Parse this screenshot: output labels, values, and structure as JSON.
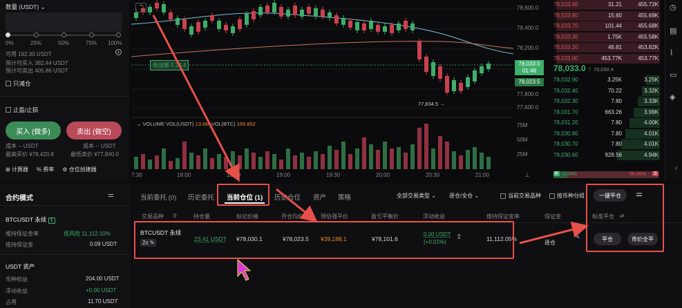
{
  "order_panel": {
    "qty_label": "数量 (USDT)",
    "pct_marks": [
      "0%",
      "25%",
      "50%",
      "75%",
      "100%"
    ],
    "available": "可用 192.30 USDT",
    "est_buy": "预计可买入 382.44 USDT",
    "est_sell": "预计可卖出 405.86 USDT",
    "reduce_only": "只减仓",
    "tp_sl": "止盈/止损",
    "buy_label": "买入 (做多)",
    "sell_label": "卖出 (做空)",
    "cost_left": "成本 -- USDT",
    "cost_right": "成本 -- USDT",
    "max_buy": "最高买价 ¥78,420.8",
    "min_sell": "最低卖价 ¥77,840.0",
    "tools": [
      "计算器",
      "费率",
      "仓位创建器"
    ]
  },
  "chart": {
    "time_ticks": [
      "7:30",
      "18:00",
      "18:30",
      "19:00",
      "19:30",
      "20:00",
      "20:30",
      "21:00"
    ],
    "price_ticks": [
      "78,600.0",
      "78,400.0",
      "78,200.0",
      "78,000.0",
      "77,800.0",
      "77,600.0"
    ],
    "volume_ticks": [
      "75M",
      "50M",
      "25M"
    ],
    "pnl_tag": "收益额 0.23.4",
    "current_price_tag": "78,033.0",
    "countdown": "01:48",
    "entry_tag": "78,023.5",
    "low_label": "77,834.5 →",
    "volume_legend_prefix": "VOLUME  VOL(USDT)",
    "volume_usdt": "13.6M",
    "volume_btc_label": "VOL(BTC)",
    "volume_btc": "169.852"
  },
  "orderbook": {
    "asks": [
      [
        "78,033.90",
        "31.21",
        "455.72K"
      ],
      [
        "78,033.80",
        "15.60",
        "455.69K"
      ],
      [
        "78,033.70",
        "101.44",
        "455.68K"
      ],
      [
        "78,033.30",
        "1.75K",
        "455.58K"
      ],
      [
        "78,033.20",
        "46.81",
        "453.82K"
      ],
      [
        "78,033.00",
        "453.77K",
        "453.77K"
      ]
    ],
    "mid_price": "78,033.0",
    "mid_ref": "78,030.4",
    "bids": [
      [
        "78,032.90",
        "3.25K",
        "3.25K"
      ],
      [
        "78,032.40",
        "70.22",
        "3.32K"
      ],
      [
        "78,032.30",
        "7.80",
        "3.33K"
      ],
      [
        "78,031.70",
        "663.26",
        "3.99K"
      ],
      [
        "78,031.20",
        "7.80",
        "4.00K"
      ],
      [
        "78,030.80",
        "7.80",
        "4.01K"
      ],
      [
        "78,030.70",
        "7.80",
        "4.01K"
      ],
      [
        "78,030.60",
        "928.56",
        "4.94K"
      ]
    ],
    "buy_ratio": "1.04%",
    "sell_ratio": "98.96%",
    "buy_letter": "B",
    "sell_letter": "S"
  },
  "bottom_left": {
    "title": "合约模式",
    "pair": "BTCUSDT 永续",
    "mmr_label": "维持保证金率",
    "mmr_value": "低风险 11,112.10%",
    "mm_label": "维持保证金",
    "mm_value": "0.09 USDT",
    "assets_title": "USDT 资产",
    "equity_label": "币种权益",
    "equity_value": "204.00 USDT",
    "upnl_label": "浮动收益",
    "upnl_value": "+0.00 USDT",
    "used_label": "占用",
    "used_value": "11.70 USDT"
  },
  "positions": {
    "tabs": [
      "当前委托 (0)",
      "历史委托",
      "当前仓位 (1)",
      "历史仓位",
      "资产",
      "策略"
    ],
    "filter_type": "全部交易类型",
    "filter_mode": "逐仓/全仓",
    "current_only": "当前交易品种",
    "group_by": "按币种分组",
    "close_all": "一键平仓",
    "headers": [
      "交易品种",
      "持仓量",
      "标记价格",
      "开仓均价",
      "预估强平价",
      "盈亏平衡价",
      "浮动收益",
      "维持保证金率",
      "保证金",
      "标准平仓"
    ],
    "row": {
      "symbol": "BTCUSDT 永续",
      "leverage": "2x",
      "size": "23.41 USDT",
      "mark": "¥78,030.1",
      "entry": "¥78,023.5",
      "liq": "¥39,188.1",
      "breakeven": "¥78,101.6",
      "upnl": "0.00 USDT",
      "upnl_pct": "(+0.01%)",
      "mmr": "11,112.05%",
      "margin_mode": "逐仓",
      "close_btn": "平仓",
      "market_close_btn": "市价全平"
    }
  }
}
